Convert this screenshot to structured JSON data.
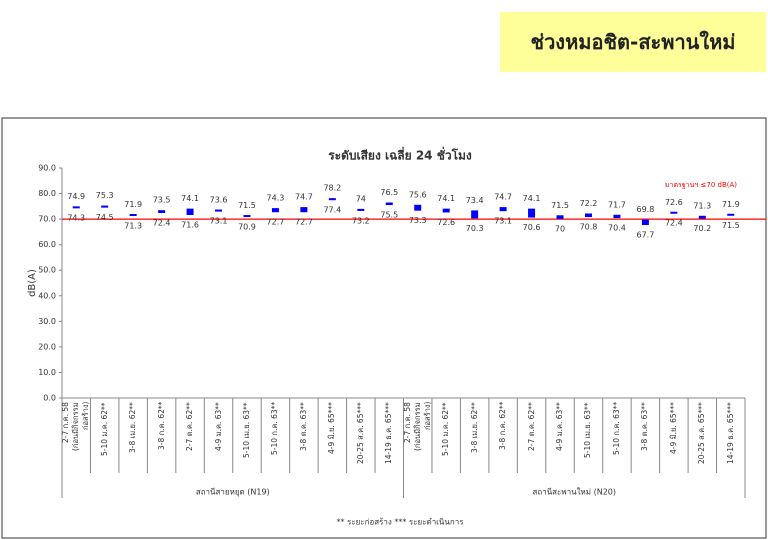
{
  "header": {
    "title": "ช่วงหมอชิต-สะพานใหม่"
  },
  "chart_data": {
    "type": "range_bar",
    "title": "ระดับเสียง เฉลี่ย 24 ชั่วโมง",
    "y_label": "dB(A)",
    "ylim": [
      0,
      90
    ],
    "yticks": [
      {
        "value": 0,
        "label": "0.0"
      },
      {
        "value": 10,
        "label": "10.0"
      },
      {
        "value": 20,
        "label": "20.0"
      },
      {
        "value": 30,
        "label": "30.0"
      },
      {
        "value": 40,
        "label": "40.0"
      },
      {
        "value": 50,
        "label": "50.0"
      },
      {
        "value": 60,
        "label": "60.0"
      },
      {
        "value": 70,
        "label": "70.0"
      },
      {
        "value": 80,
        "label": "80.0"
      },
      {
        "value": 90,
        "label": "90.0"
      }
    ],
    "color": "#0000ff",
    "standard": {
      "value": 70,
      "label": "มาตรฐานฯ ≤70 dB(A)",
      "color": "#ff0000"
    },
    "groups": [
      {
        "label": "สถานีสายหยุด (N19)",
        "categories": [
          "2-7 ก.ค. 58\n(ก่อนมีกิจกรรมก่อสร้าง)",
          "5-10 ม.ค. 62**",
          "3-8 เม.ย. 62**",
          "3-8 ก.ค. 62**",
          "2-7 ต.ค. 62**",
          "4-9 ม.ค. 63**",
          "5-10 เม.ย. 63**",
          "5-10 ก.ค. 63**",
          "3-8 ต.ค. 63**",
          "4-9 มิ.ย. 65***",
          "20-25 ส.ค. 65***",
          "14-19 ธ.ค. 65***"
        ],
        "highs": [
          74.9,
          75.3,
          71.9,
          73.5,
          74.1,
          73.6,
          71.5,
          74.3,
          74.7,
          78.2,
          74.0,
          76.5
        ],
        "lows": [
          74.3,
          74.5,
          71.3,
          72.4,
          71.6,
          73.1,
          70.9,
          72.7,
          72.7,
          77.4,
          73.2,
          75.5
        ]
      },
      {
        "label": "สถานีสะพานใหม่ (N20)",
        "categories": [
          "2-7 ก.ค. 58\n(ก่อนมีกิจกรรมก่อสร้าง)",
          "5-10 ม.ค. 62**",
          "3-8 เม.ย. 62**",
          "3-8 ก.ค. 62**",
          "2-7 ต.ค. 62**",
          "4-9 ม.ค. 63**",
          "5-10 เม.ย. 63**",
          "5-10 ก.ค. 63**",
          "3-8 ต.ค. 63**",
          "4-9 มิ.ย. 65***",
          "20-25 ส.ค. 65***",
          "14-19 ธ.ค. 65***"
        ],
        "highs": [
          75.6,
          74.1,
          73.4,
          74.7,
          74.1,
          71.5,
          72.2,
          71.7,
          69.8,
          72.6,
          71.3,
          71.9
        ],
        "lows": [
          73.3,
          72.6,
          70.3,
          73.1,
          70.6,
          70.0,
          70.8,
          70.4,
          67.7,
          72.4,
          70.2,
          71.5
        ]
      }
    ],
    "footnote": "** ระยะก่อสร้าง   *** ระยะดำเนินการ"
  }
}
